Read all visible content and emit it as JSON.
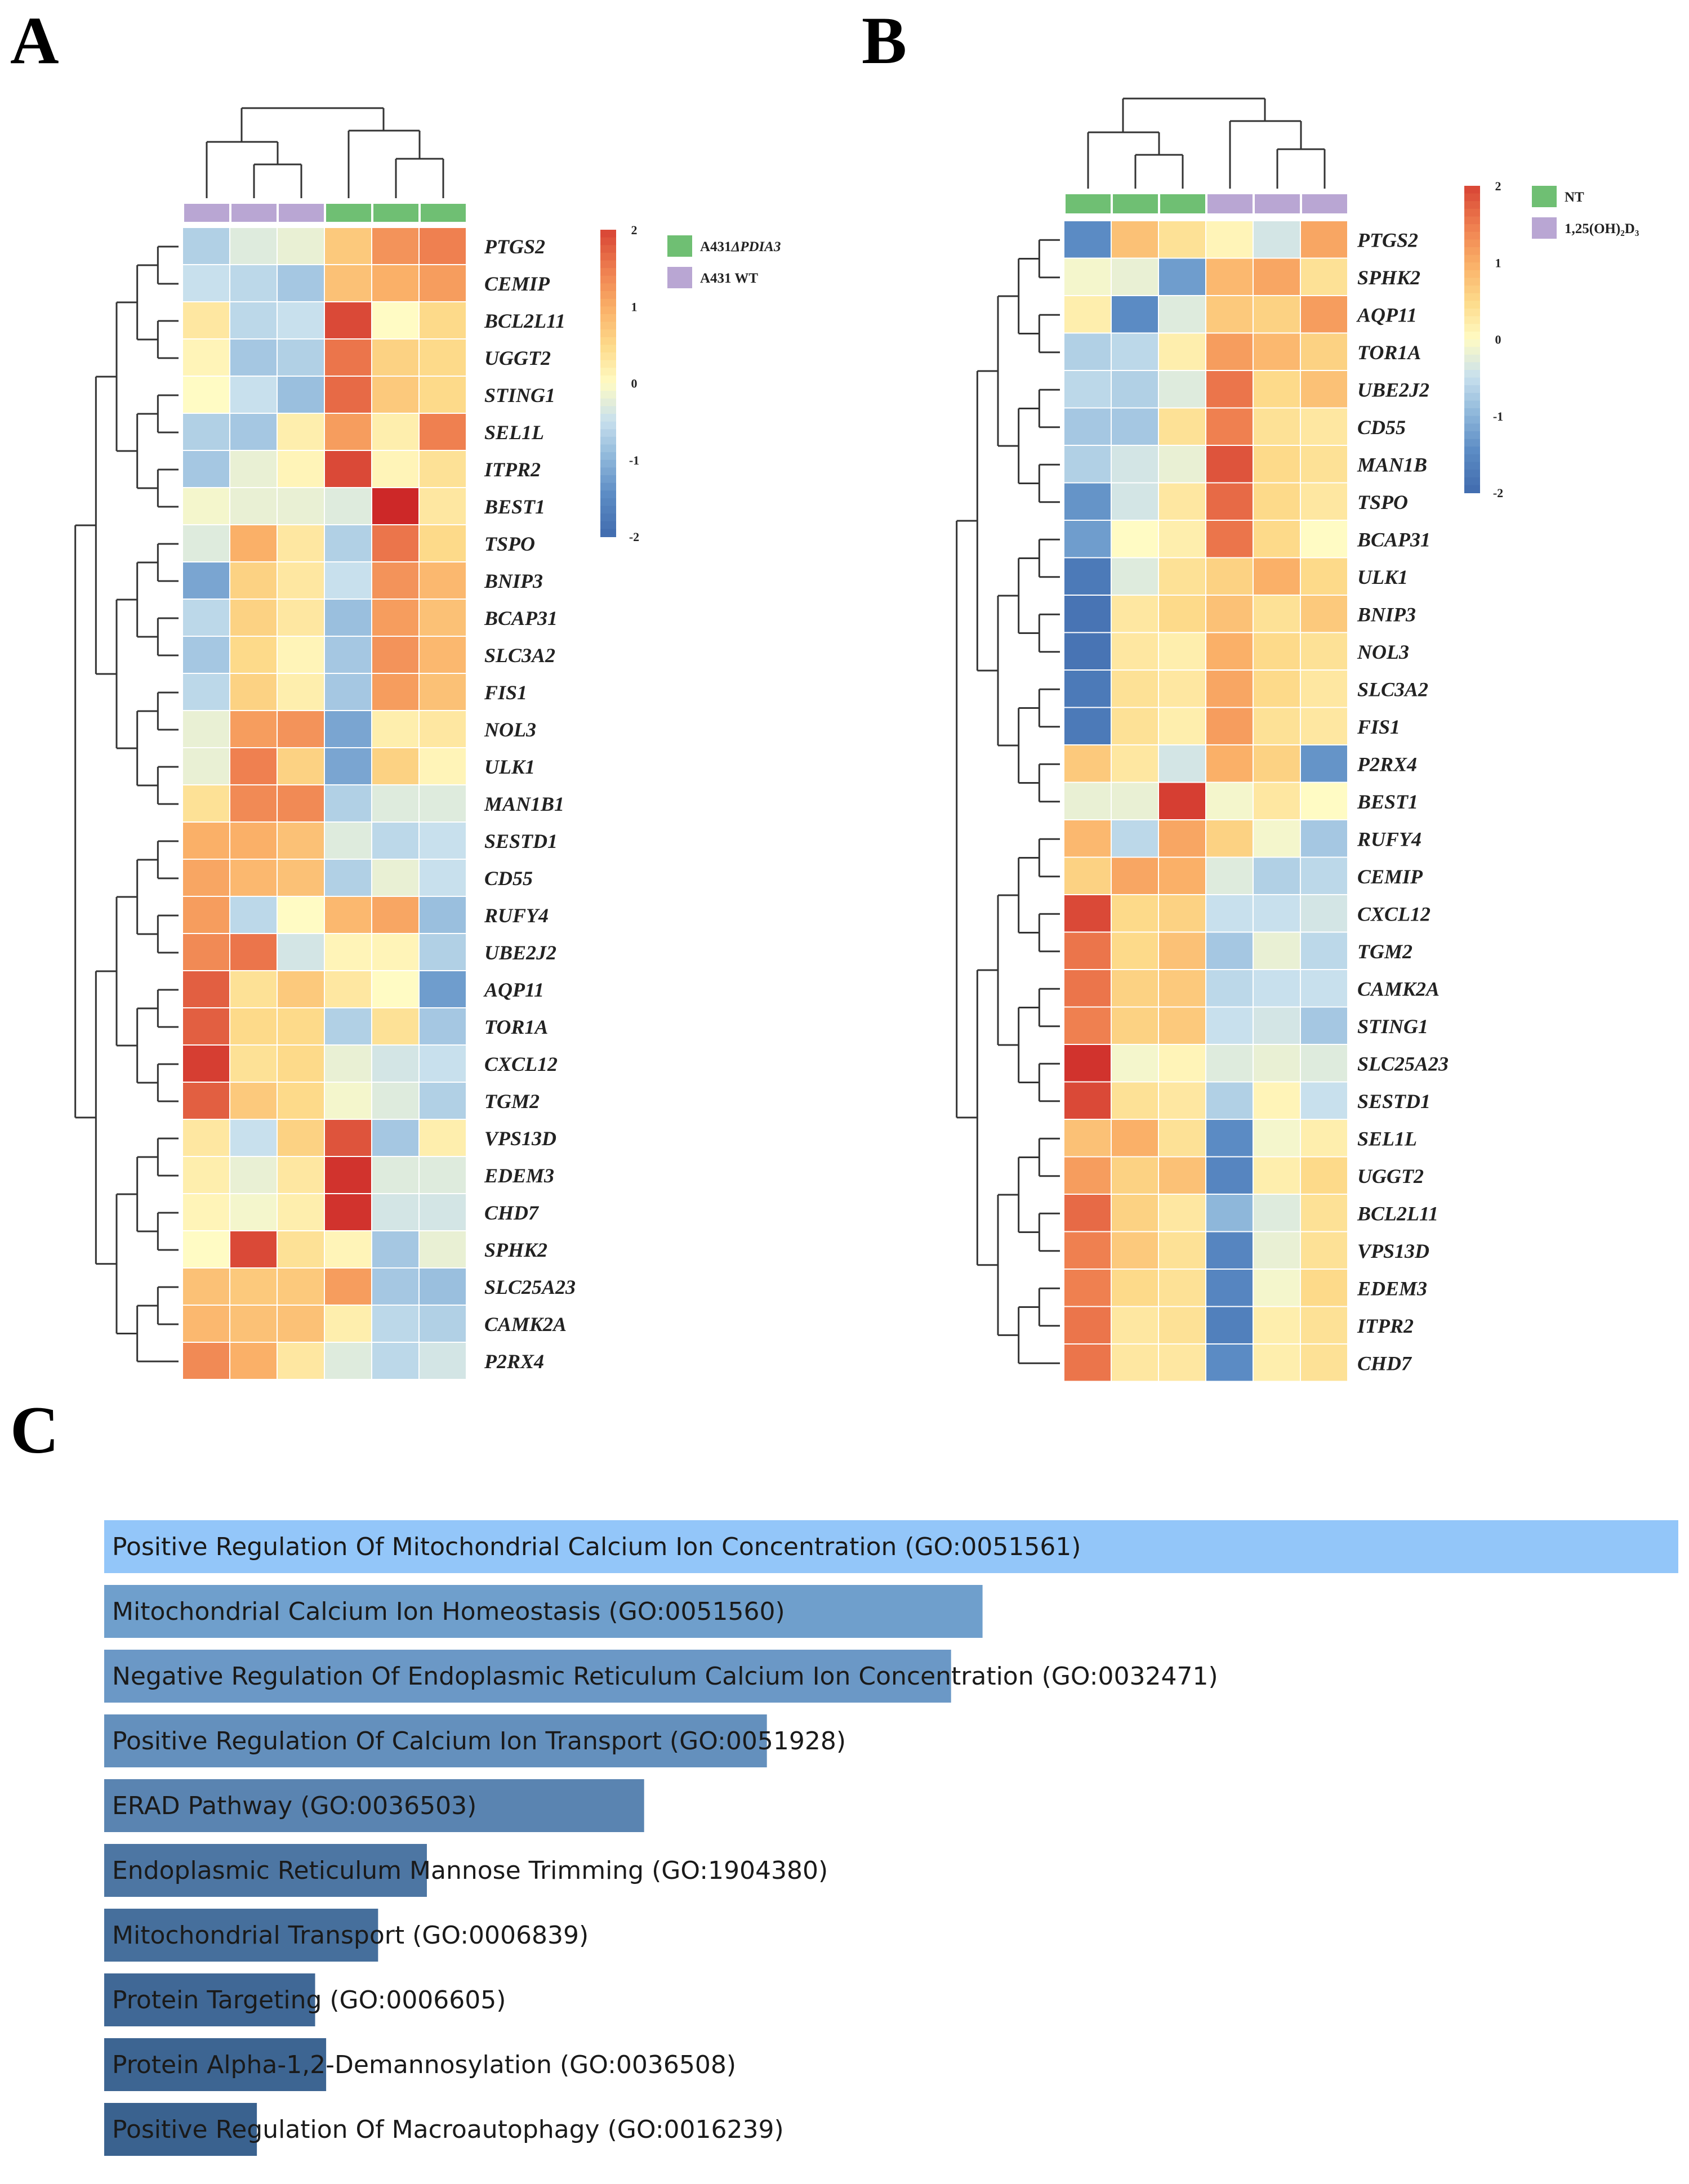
{
  "figure": {
    "panel_labels": {
      "a": "A",
      "b": "B",
      "c": "C"
    }
  },
  "chart_data": [
    {
      "type": "heatmap",
      "panel": "A",
      "colorbar": {
        "min": -2,
        "max": 2,
        "ticks": [
          "2",
          "1",
          "0",
          "-1",
          "-2"
        ]
      },
      "legend": [
        {
          "label": "A431",
          "label_italic": "ΔPDIA3",
          "color": "#6fbf73"
        },
        {
          "label": "A431 WT",
          "label_italic": "",
          "color": "#b9a6d3"
        }
      ],
      "column_groups": [
        "A431 WT",
        "A431 WT",
        "A431 WT",
        "A431ΔPDIA3",
        "A431ΔPDIA3",
        "A431ΔPDIA3"
      ],
      "column_colors": [
        "#b9a6d3",
        "#b9a6d3",
        "#b9a6d3",
        "#6fbf73",
        "#6fbf73",
        "#6fbf73"
      ],
      "rows": [
        "PTGS2",
        "CEMIP",
        "BCL2L11",
        "UGGT2",
        "STING1",
        "SEL1L",
        "ITPR2",
        "BEST1",
        "TSPO",
        "BNIP3",
        "BCAP31",
        "SLC3A2",
        "FIS1",
        "NOL3",
        "ULK1",
        "MAN1B1",
        "SESTD1",
        "CD55",
        "RUFY4",
        "UBE2J2",
        "AQP11",
        "TOR1A",
        "CXCL12",
        "TGM2",
        "VPS13D",
        "EDEM3",
        "CHD7",
        "SPHK2",
        "SLC25A23",
        "CAMK2A",
        "P2RX4"
      ],
      "values": [
        [
          -0.7,
          -0.3,
          -0.2,
          0.7,
          1.3,
          1.5
        ],
        [
          -0.5,
          -0.6,
          -0.8,
          0.8,
          1.0,
          1.2
        ],
        [
          0.3,
          -0.6,
          -0.5,
          2.0,
          0.0,
          0.5
        ],
        [
          0.1,
          -0.8,
          -0.7,
          1.6,
          0.6,
          0.5
        ],
        [
          0.0,
          -0.5,
          -0.9,
          1.7,
          0.7,
          0.5
        ],
        [
          -0.7,
          -0.8,
          0.2,
          1.2,
          0.2,
          1.5
        ],
        [
          -0.8,
          -0.2,
          0.1,
          2.0,
          0.1,
          0.4
        ],
        [
          -0.1,
          -0.2,
          -0.2,
          -0.3,
          2.3,
          0.3
        ],
        [
          -0.3,
          1.0,
          0.3,
          -0.7,
          1.6,
          0.5
        ],
        [
          -1.2,
          0.6,
          0.3,
          -0.5,
          1.3,
          0.9
        ],
        [
          -0.6,
          0.6,
          0.3,
          -0.9,
          1.2,
          0.8
        ],
        [
          -0.8,
          0.5,
          0.1,
          -0.8,
          1.3,
          0.9
        ],
        [
          -0.6,
          0.6,
          0.2,
          -0.8,
          1.2,
          0.8
        ],
        [
          -0.2,
          1.2,
          1.3,
          -1.2,
          0.2,
          0.3
        ],
        [
          -0.2,
          1.5,
          0.6,
          -1.2,
          0.6,
          0.1
        ],
        [
          0.4,
          1.4,
          1.4,
          -0.7,
          -0.3,
          -0.3
        ],
        [
          1.0,
          1.0,
          0.8,
          -0.3,
          -0.6,
          -0.5
        ],
        [
          1.1,
          0.9,
          0.8,
          -0.7,
          -0.2,
          -0.5
        ],
        [
          1.2,
          -0.6,
          0.0,
          0.9,
          1.1,
          -0.9
        ],
        [
          1.4,
          1.6,
          -0.4,
          0.1,
          0.1,
          -0.7
        ],
        [
          1.8,
          0.4,
          0.7,
          0.3,
          0.0,
          -1.3
        ],
        [
          1.8,
          0.5,
          0.5,
          -0.7,
          0.4,
          -0.8
        ],
        [
          2.1,
          0.4,
          0.5,
          -0.2,
          -0.4,
          -0.5
        ],
        [
          1.8,
          0.7,
          0.5,
          -0.1,
          -0.3,
          -0.7
        ],
        [
          0.3,
          -0.5,
          0.6,
          1.9,
          -0.8,
          0.2
        ],
        [
          0.2,
          -0.2,
          0.3,
          2.2,
          -0.3,
          -0.3
        ],
        [
          0.1,
          -0.1,
          0.2,
          2.2,
          -0.4,
          -0.4
        ],
        [
          0.0,
          2.0,
          0.4,
          0.1,
          -0.8,
          -0.2
        ],
        [
          0.8,
          0.7,
          0.7,
          1.2,
          -0.8,
          -0.9
        ],
        [
          0.9,
          0.8,
          0.8,
          0.2,
          -0.6,
          -0.7
        ],
        [
          1.4,
          1.0,
          0.3,
          -0.3,
          -0.6,
          -0.4
        ]
      ]
    },
    {
      "type": "heatmap",
      "panel": "B",
      "colorbar": {
        "min": -2,
        "max": 2,
        "ticks": [
          "2",
          "1",
          "0",
          "-1",
          "-2"
        ]
      },
      "legend": [
        {
          "label": "NT",
          "label_italic": "",
          "color": "#6fbf73"
        },
        {
          "label": "1,25(OH)₂D₃",
          "label_italic": "",
          "color": "#b9a6d3"
        }
      ],
      "column_groups": [
        "NT",
        "NT",
        "NT",
        "1,25(OH)₂D₃",
        "1,25(OH)₂D₃",
        "1,25(OH)₂D₃"
      ],
      "column_colors": [
        "#6fbf73",
        "#6fbf73",
        "#6fbf73",
        "#b9a6d3",
        "#b9a6d3",
        "#b9a6d3"
      ],
      "rows": [
        "PTGS2",
        "SPHK2",
        "AQP11",
        "TOR1A",
        "UBE2J2",
        "CD55",
        "MAN1B",
        "TSPO",
        "BCAP31",
        "ULK1",
        "BNIP3",
        "NOL3",
        "SLC3A2",
        "FIS1",
        "P2RX4",
        "BEST1",
        "RUFY4",
        "CEMIP",
        "CXCL12",
        "TGM2",
        "CAMK2A",
        "STING1",
        "SLC25A23",
        "SESTD1",
        "SEL1L",
        "UGGT2",
        "BCL2L11",
        "VPS13D",
        "EDEM3",
        "ITPR2",
        "CHD7"
      ],
      "values": [
        [
          -1.5,
          0.8,
          0.4,
          0.1,
          -0.4,
          1.1
        ],
        [
          -0.1,
          -0.2,
          -1.3,
          0.9,
          1.1,
          0.4
        ],
        [
          0.2,
          -1.5,
          -0.3,
          0.7,
          0.6,
          1.2
        ],
        [
          -0.7,
          -0.6,
          0.2,
          1.2,
          0.9,
          0.6
        ],
        [
          -0.6,
          -0.7,
          -0.3,
          1.6,
          0.5,
          0.8
        ],
        [
          -0.8,
          -0.8,
          0.4,
          1.5,
          0.4,
          0.3
        ],
        [
          -0.7,
          -0.4,
          -0.2,
          1.9,
          0.5,
          0.4
        ],
        [
          -1.4,
          -0.4,
          0.3,
          1.7,
          0.5,
          0.3
        ],
        [
          -1.3,
          0.0,
          0.2,
          1.6,
          0.5,
          0.0
        ],
        [
          -1.8,
          -0.3,
          0.4,
          0.6,
          1.0,
          0.5
        ],
        [
          -1.9,
          0.3,
          0.5,
          0.8,
          0.4,
          0.7
        ],
        [
          -1.9,
          0.3,
          0.2,
          1.0,
          0.5,
          0.4
        ],
        [
          -1.8,
          0.4,
          0.3,
          1.1,
          0.5,
          0.3
        ],
        [
          -1.8,
          0.4,
          0.2,
          1.2,
          0.4,
          0.3
        ],
        [
          0.7,
          0.3,
          -0.4,
          1.0,
          0.6,
          -1.4
        ],
        [
          -0.2,
          -0.2,
          2.1,
          -0.1,
          0.3,
          0.0
        ],
        [
          0.9,
          -0.6,
          1.1,
          0.6,
          -0.1,
          -0.8
        ],
        [
          0.6,
          1.1,
          1.0,
          -0.3,
          -0.7,
          -0.6
        ],
        [
          2.0,
          0.5,
          0.6,
          -0.5,
          -0.5,
          -0.4
        ],
        [
          1.6,
          0.5,
          0.8,
          -0.8,
          -0.2,
          -0.6
        ],
        [
          1.6,
          0.6,
          0.7,
          -0.6,
          -0.5,
          -0.5
        ],
        [
          1.5,
          0.6,
          0.7,
          -0.5,
          -0.4,
          -0.8
        ],
        [
          2.2,
          -0.1,
          0.1,
          -0.3,
          -0.2,
          -0.3
        ],
        [
          2.0,
          0.4,
          0.3,
          -0.7,
          0.1,
          -0.5
        ],
        [
          0.8,
          1.0,
          0.4,
          -1.5,
          -0.1,
          0.2
        ],
        [
          1.2,
          0.6,
          0.8,
          -1.6,
          0.2,
          0.5
        ],
        [
          1.7,
          0.6,
          0.3,
          -1.0,
          -0.3,
          0.4
        ],
        [
          1.5,
          0.7,
          0.4,
          -1.6,
          -0.2,
          0.4
        ],
        [
          1.5,
          0.5,
          0.4,
          -1.6,
          -0.1,
          0.5
        ],
        [
          1.6,
          0.3,
          0.4,
          -1.7,
          0.2,
          0.4
        ],
        [
          1.6,
          0.3,
          0.3,
          -1.5,
          0.2,
          0.4
        ]
      ]
    },
    {
      "type": "bar",
      "panel": "C",
      "orientation": "horizontal",
      "title": "",
      "xlabel": "",
      "ylabel": "",
      "categories": [
        "Positive Regulation Of Mitochondrial Calcium Ion Concentration (GO:0051561)",
        "Mitochondrial Calcium Ion Homeostasis (GO:0051560)",
        "Negative Regulation Of Endoplasmic Reticulum Calcium Ion Concentration (GO:0032471)",
        "Positive Regulation Of Calcium Ion Transport (GO:0051928)",
        "ERAD Pathway (GO:0036503)",
        "Endoplasmic Reticulum Mannose Trimming (GO:1904380)",
        "Mitochondrial Transport (GO:0006839)",
        "Protein Targeting (GO:0006605)",
        "Protein Alpha-1,2-Demannosylation (GO:0036508)",
        "Positive Regulation Of Macroautophagy (GO:0016239)"
      ],
      "values": [
        1.0,
        0.558,
        0.538,
        0.421,
        0.343,
        0.205,
        0.174,
        0.134,
        0.141,
        0.097
      ],
      "bar_colors": [
        "#93c6f9",
        "#6f9fcc",
        "#6b98c6",
        "#6490bd",
        "#5a84b1",
        "#4d76a3",
        "#466f9c",
        "#406896",
        "#3d6592",
        "#3a628f"
      ],
      "xlim": [
        0,
        1
      ]
    }
  ]
}
